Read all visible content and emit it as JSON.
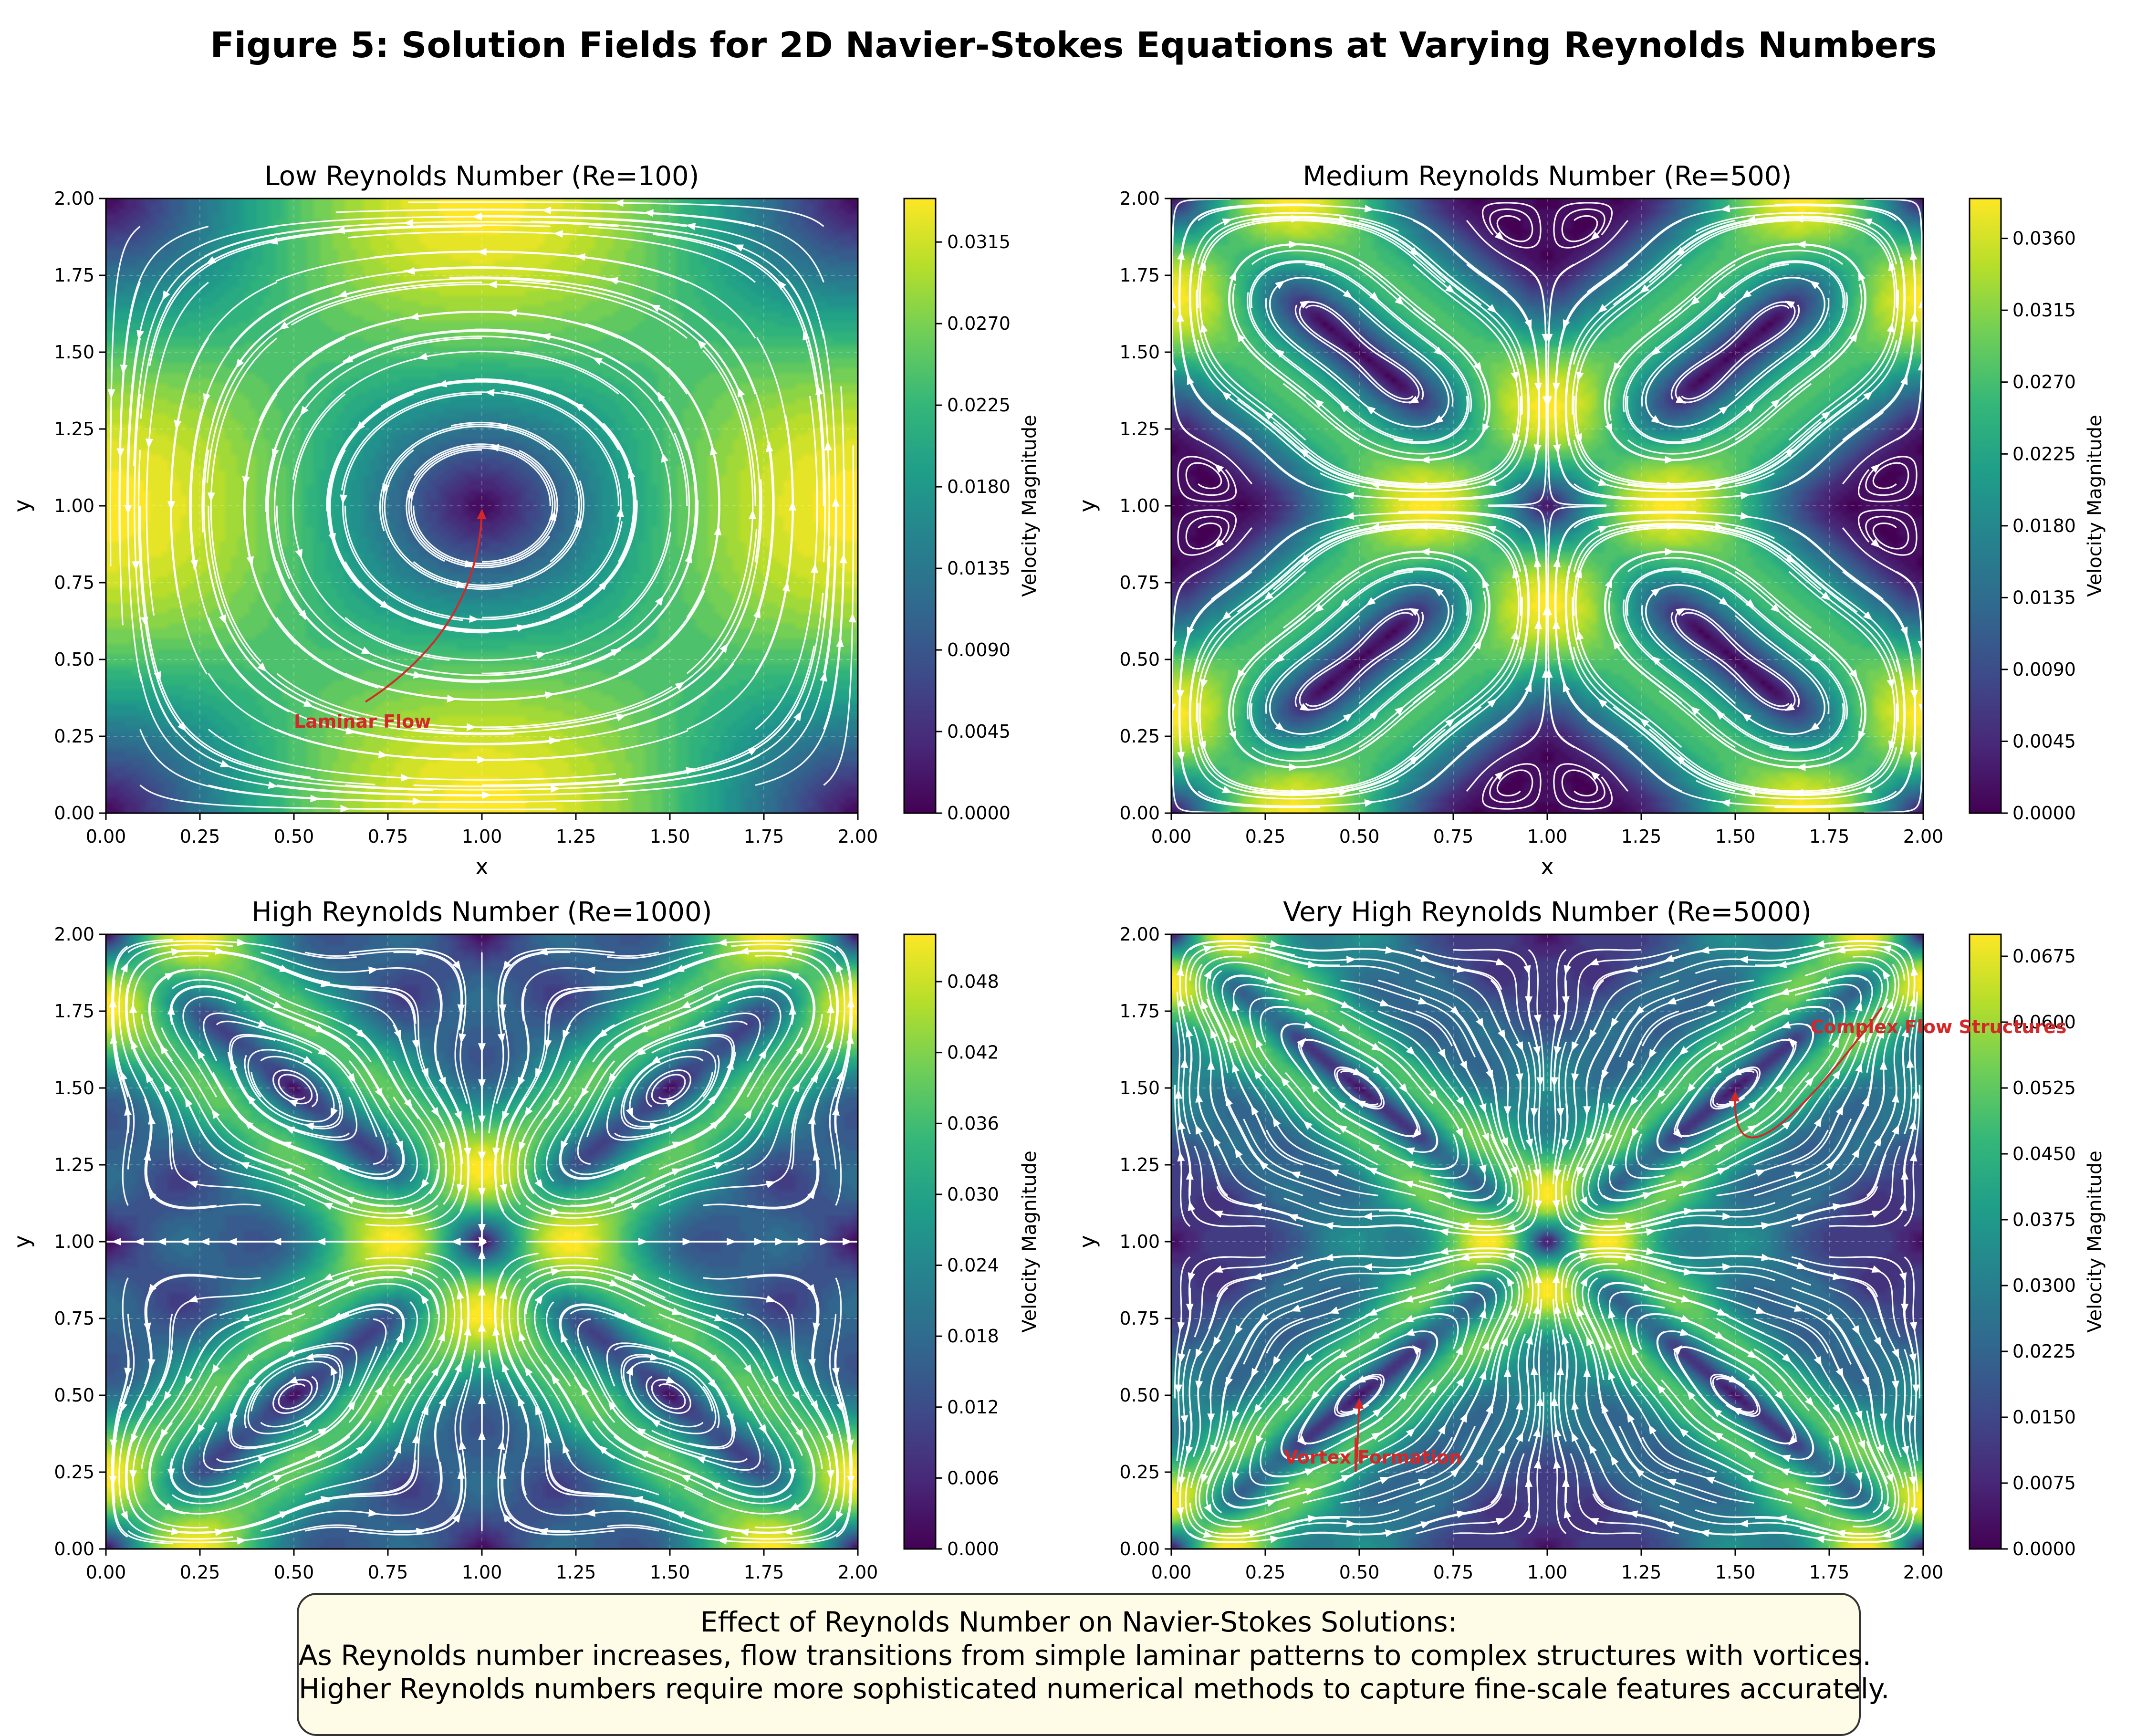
{
  "figure": {
    "title": "Figure 5: Solution Fields for 2D Navier-Stokes Equations at Varying Reynolds Numbers"
  },
  "summary": {
    "line1": "Effect of Reynolds Number on Navier-Stokes Solutions:",
    "line2": "As Reynolds number increases, flow transitions from simple laminar patterns to complex structures with vortices.",
    "line3": "Higher Reynolds numbers require more sophisticated numerical methods to capture fine-scale features accurately."
  },
  "colors": {
    "viridis": [
      "#440154",
      "#482878",
      "#3e4a89",
      "#31688e",
      "#26828e",
      "#1f9e89",
      "#35b779",
      "#6ece58",
      "#b5de2b",
      "#fde725"
    ],
    "streamline": "#ffffff",
    "annotation": "#d62728",
    "summary_bg": "#fefce6"
  },
  "chart_data": [
    {
      "type": "heatmap",
      "title": "Low Reynolds Number (Re=100)",
      "xlabel": "x",
      "ylabel": "y",
      "xlim": [
        0,
        2
      ],
      "ylim": [
        0,
        2
      ],
      "xticks": [
        "0.00",
        "0.25",
        "0.50",
        "0.75",
        "1.00",
        "1.25",
        "1.50",
        "1.75",
        "2.00"
      ],
      "yticks": [
        "0.00",
        "0.25",
        "0.50",
        "0.75",
        "1.00",
        "1.25",
        "1.50",
        "1.75",
        "2.00"
      ],
      "field": "velocity magnitude of sin(πx/k)·cos(πy/k) vortex pattern",
      "wavenumber": 1,
      "vmax": 0.0339,
      "colorbar": {
        "label": "Velocity Magnitude",
        "ticks": [
          "0.0000",
          "0.0045",
          "0.0090",
          "0.0135",
          "0.0180",
          "0.0225",
          "0.0270",
          "0.0315"
        ],
        "tick_values": [
          0,
          0.0045,
          0.009,
          0.0135,
          0.018,
          0.0225,
          0.027,
          0.0315
        ]
      },
      "annotation": {
        "text": "Laminar Flow",
        "xy": [
          1.0,
          1.0
        ],
        "xytext": [
          0.5,
          0.3
        ]
      },
      "grid": true
    },
    {
      "type": "heatmap",
      "title": "Medium Reynolds Number (Re=500)",
      "xlabel": "x",
      "ylabel": "y",
      "xlim": [
        0,
        2
      ],
      "ylim": [
        0,
        2
      ],
      "xticks": [
        "0.00",
        "0.25",
        "0.50",
        "0.75",
        "1.00",
        "1.25",
        "1.50",
        "1.75",
        "2.00"
      ],
      "yticks": [
        "0.00",
        "0.25",
        "0.50",
        "0.75",
        "1.00",
        "1.25",
        "1.50",
        "1.75",
        "2.00"
      ],
      "field": "velocity magnitude, superposed modes",
      "wavenumber": 2,
      "vmax": 0.0385,
      "colorbar": {
        "label": "Velocity Magnitude",
        "ticks": [
          "0.0000",
          "0.0045",
          "0.0090",
          "0.0135",
          "0.0180",
          "0.0225",
          "0.0270",
          "0.0315",
          "0.0360"
        ],
        "tick_values": [
          0,
          0.0045,
          0.009,
          0.0135,
          0.018,
          0.0225,
          0.027,
          0.0315,
          0.036
        ]
      },
      "grid": true
    },
    {
      "type": "heatmap",
      "title": "High Reynolds Number (Re=1000)",
      "xlabel": "x",
      "ylabel": "y",
      "xlim": [
        0,
        2
      ],
      "ylim": [
        0,
        2
      ],
      "xticks": [
        "0.00",
        "0.25",
        "0.50",
        "0.75",
        "1.00",
        "1.25",
        "1.50",
        "1.75",
        "2.00"
      ],
      "yticks": [
        "0.00",
        "0.25",
        "0.50",
        "0.75",
        "1.00",
        "1.25",
        "1.50",
        "1.75",
        "2.00"
      ],
      "field": "velocity magnitude, higher harmonics",
      "wavenumber": 3,
      "vmax": 0.052,
      "colorbar": {
        "label": "Velocity Magnitude",
        "ticks": [
          "0.000",
          "0.006",
          "0.012",
          "0.018",
          "0.024",
          "0.030",
          "0.036",
          "0.042",
          "0.048"
        ],
        "tick_values": [
          0,
          0.006,
          0.012,
          0.018,
          0.024,
          0.03,
          0.036,
          0.042,
          0.048
        ]
      },
      "grid": true
    },
    {
      "type": "heatmap",
      "title": "Very High Reynolds Number (Re=5000)",
      "xlabel": "x",
      "ylabel": "y",
      "xlim": [
        0,
        2
      ],
      "ylim": [
        0,
        2
      ],
      "xticks": [
        "0.00",
        "0.25",
        "0.50",
        "0.75",
        "1.00",
        "1.25",
        "1.50",
        "1.75",
        "2.00"
      ],
      "yticks": [
        "0.00",
        "0.25",
        "0.50",
        "0.75",
        "1.00",
        "1.25",
        "1.50",
        "1.75",
        "2.00"
      ],
      "field": "velocity magnitude, multi-scale turbulent-like structures",
      "wavenumber": 4,
      "vmax": 0.07,
      "colorbar": {
        "label": "Velocity Magnitude",
        "ticks": [
          "0.0000",
          "0.0075",
          "0.0150",
          "0.0225",
          "0.0300",
          "0.0375",
          "0.0450",
          "0.0525",
          "0.0600",
          "0.0675"
        ],
        "tick_values": [
          0,
          0.0075,
          0.015,
          0.0225,
          0.03,
          0.0375,
          0.045,
          0.0525,
          0.06,
          0.0675
        ]
      },
      "annotations": [
        {
          "text": "Complex Flow Structures",
          "xy": [
            1.5,
            1.5
          ],
          "xytext": [
            1.7,
            1.7
          ]
        },
        {
          "text": "Vortex Formation",
          "xy": [
            0.5,
            0.5
          ],
          "xytext": [
            0.3,
            0.3
          ]
        }
      ],
      "grid": true
    }
  ]
}
